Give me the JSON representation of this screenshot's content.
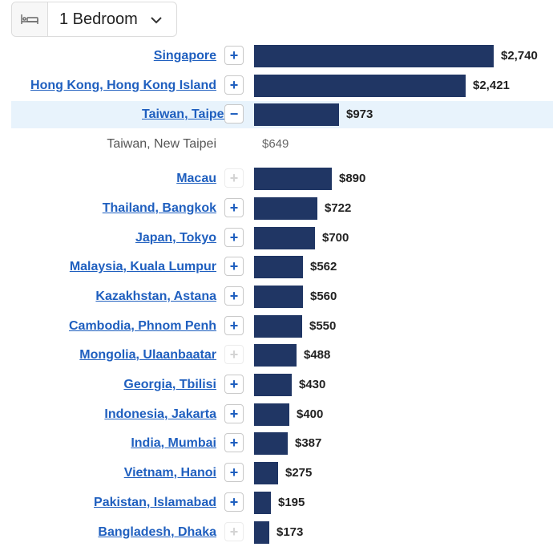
{
  "selector": {
    "icon": "bed-icon",
    "label": "1 Bedroom",
    "chevron": "chevron-down-icon"
  },
  "colors": {
    "bar": "#203664",
    "link": "#1f5fbf",
    "highlight": "#e8f3fc"
  },
  "chart_data": {
    "type": "bar",
    "orientation": "horizontal",
    "title": "",
    "xlabel": "",
    "ylabel": "",
    "xlim": [
      0,
      2740
    ],
    "rows": [
      {
        "label": "Singapore",
        "value": 2740,
        "display": "$2,740",
        "toggle": "+",
        "toggle_enabled": true
      },
      {
        "label": "Hong Kong, Hong Kong Island",
        "value": 2421,
        "display": "$2,421",
        "toggle": "+",
        "toggle_enabled": true
      },
      {
        "label": "Taiwan, Taipei",
        "value": 973,
        "display": "$973",
        "toggle": "−",
        "toggle_enabled": true,
        "highlight": true
      },
      {
        "label": "Taiwan, New Taipei",
        "value": 649,
        "display": "$649",
        "sub": true
      },
      {
        "label": "Macau",
        "value": 890,
        "display": "$890",
        "toggle": "+",
        "toggle_enabled": false
      },
      {
        "label": "Thailand, Bangkok",
        "value": 722,
        "display": "$722",
        "toggle": "+",
        "toggle_enabled": true
      },
      {
        "label": "Japan, Tokyo",
        "value": 700,
        "display": "$700",
        "toggle": "+",
        "toggle_enabled": true
      },
      {
        "label": "Malaysia, Kuala Lumpur",
        "value": 562,
        "display": "$562",
        "toggle": "+",
        "toggle_enabled": true
      },
      {
        "label": "Kazakhstan, Astana",
        "value": 560,
        "display": "$560",
        "toggle": "+",
        "toggle_enabled": true
      },
      {
        "label": "Cambodia, Phnom Penh",
        "value": 550,
        "display": "$550",
        "toggle": "+",
        "toggle_enabled": true
      },
      {
        "label": "Mongolia, Ulaanbaatar",
        "value": 488,
        "display": "$488",
        "toggle": "+",
        "toggle_enabled": false
      },
      {
        "label": "Georgia, Tbilisi",
        "value": 430,
        "display": "$430",
        "toggle": "+",
        "toggle_enabled": true
      },
      {
        "label": "Indonesia, Jakarta",
        "value": 400,
        "display": "$400",
        "toggle": "+",
        "toggle_enabled": true
      },
      {
        "label": "India, Mumbai",
        "value": 387,
        "display": "$387",
        "toggle": "+",
        "toggle_enabled": true
      },
      {
        "label": "Vietnam, Hanoi",
        "value": 275,
        "display": "$275",
        "toggle": "+",
        "toggle_enabled": true
      },
      {
        "label": "Pakistan, Islamabad",
        "value": 195,
        "display": "$195",
        "toggle": "+",
        "toggle_enabled": true
      },
      {
        "label": "Bangladesh, Dhaka",
        "value": 173,
        "display": "$173",
        "toggle": "+",
        "toggle_enabled": false
      }
    ]
  }
}
